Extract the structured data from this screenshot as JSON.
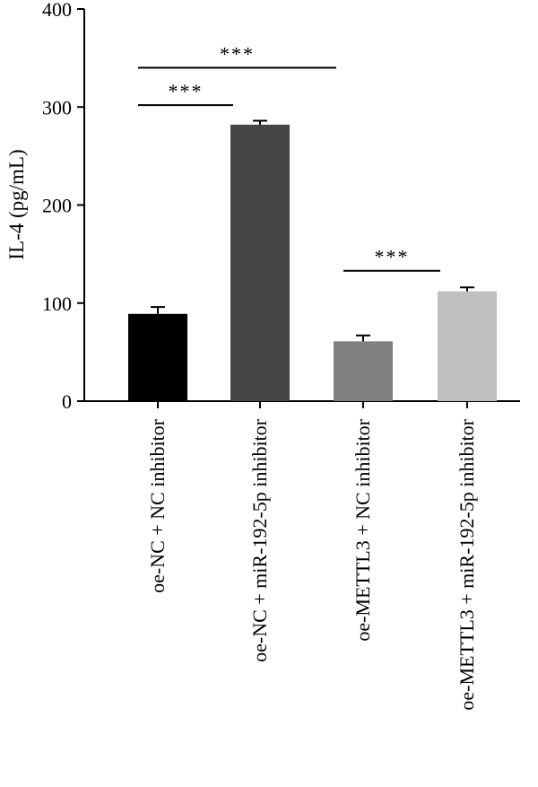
{
  "chart_data": {
    "type": "bar",
    "ylabel": "IL-4 (pg/mL)",
    "xlabel": "",
    "title": "",
    "ylim": [
      0,
      400
    ],
    "yticks": [
      0,
      100,
      200,
      300,
      400
    ],
    "grid": false,
    "categories": [
      "oe-NC + NC inhibitor",
      "oe-NC + miR-192-5p inhibitor",
      "oe-METTL3 + NC inhibitor",
      "oe-METTL3 + miR-192-5p inhibitor"
    ],
    "values": [
      89,
      282,
      61,
      112
    ],
    "errors": [
      7,
      4,
      6,
      4
    ],
    "colors": [
      "#000000",
      "#454545",
      "#808080",
      "#c0c0c0"
    ],
    "significance": [
      {
        "from": 0,
        "to": 1,
        "y": 302,
        "label": "***"
      },
      {
        "from": 0,
        "to": 2,
        "y": 340,
        "label": "***"
      },
      {
        "from": 2,
        "to": 3,
        "y": 133,
        "label": "***"
      }
    ]
  }
}
